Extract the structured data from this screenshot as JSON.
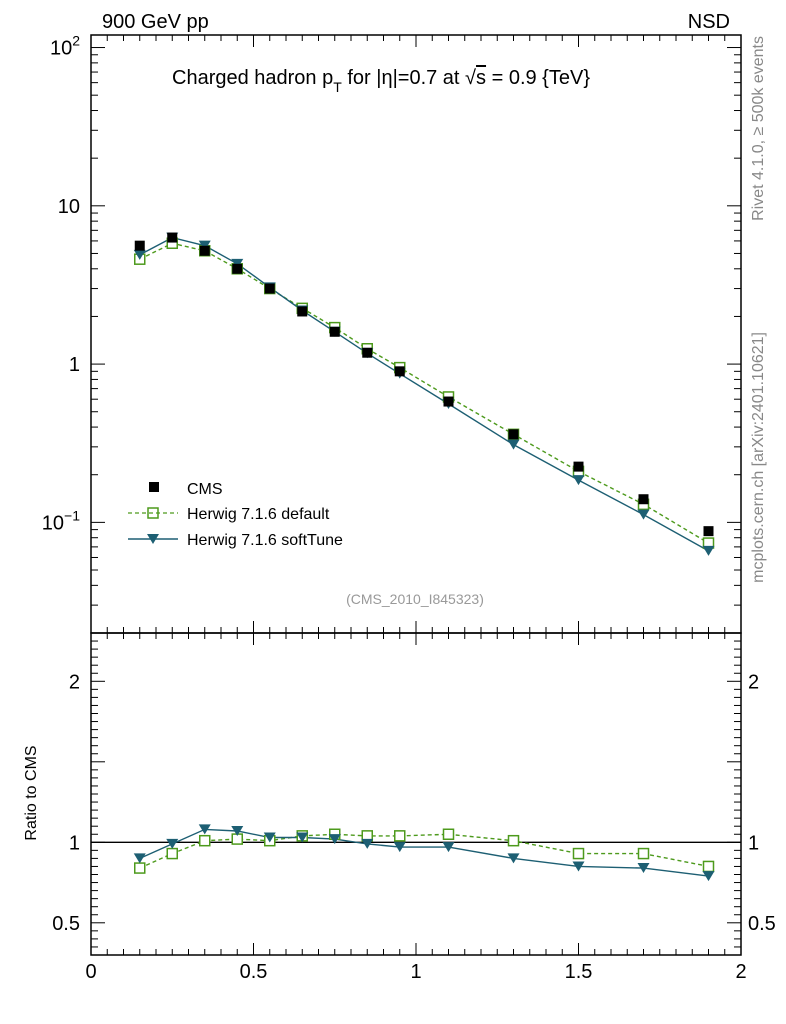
{
  "header": {
    "left_label": "900 GeV pp",
    "right_label": "NSD"
  },
  "side_text": {
    "rivet": "Rivet 4.1.0, ≥ 500k events",
    "mcplots": "mcplots.cern.ch [arXiv:2401.10621]"
  },
  "colors": {
    "data": "#000000",
    "default": "#4d9a1c",
    "softtune": "#1d5f73",
    "watermark": "#999999"
  },
  "chart_data": [
    {
      "type": "scatter",
      "title": "Charged hadron p_T for |η|=0.7 at √s = 0.9 {TeV}",
      "title_parts": {
        "pre": "Charged hadron p",
        "sub": "T",
        "mid": " for |η|=0.7 at ",
        "root": "√",
        "s": "s",
        "post": " = 0.9 {TeV}"
      },
      "watermark": "(CMS_2010_I845323)",
      "yscale": "log",
      "ylim": [
        0.02,
        120
      ],
      "xlim": [
        0,
        2
      ],
      "yticks": [
        {
          "v": 0.1,
          "base": "10",
          "exp": "−1"
        },
        {
          "v": 1,
          "base": "1",
          "exp": ""
        },
        {
          "v": 10,
          "base": "10",
          "exp": ""
        },
        {
          "v": 100,
          "base": "10",
          "exp": "2"
        }
      ],
      "legend_position": "lower-left",
      "x": [
        0.15,
        0.25,
        0.35,
        0.45,
        0.55,
        0.65,
        0.75,
        0.85,
        0.95,
        1.1,
        1.3,
        1.5,
        1.7,
        1.9
      ],
      "series": [
        {
          "name": "CMS",
          "style": "data",
          "values": [
            5.6,
            6.3,
            5.2,
            4.0,
            3.0,
            2.15,
            1.6,
            1.18,
            0.9,
            0.58,
            0.36,
            0.225,
            0.14,
            0.088
          ]
        },
        {
          "name": "Herwig 7.1.6 default",
          "style": "default",
          "values": [
            4.6,
            5.8,
            5.2,
            4.0,
            3.0,
            2.25,
            1.7,
            1.25,
            0.95,
            0.62,
            0.36,
            0.21,
            0.13,
            0.074
          ]
        },
        {
          "name": "Herwig 7.1.6 softTune",
          "style": "softtune",
          "values": [
            4.9,
            6.3,
            5.6,
            4.3,
            3.05,
            2.18,
            1.6,
            1.17,
            0.87,
            0.56,
            0.31,
            0.185,
            0.112,
            0.066
          ]
        }
      ]
    },
    {
      "type": "line",
      "ylabel": "Ratio to CMS",
      "ylim": [
        0.3,
        2.3
      ],
      "xlim": [
        0,
        2
      ],
      "yticks": [
        {
          "v": 0.5,
          "label": "0.5"
        },
        {
          "v": 1,
          "label": "1"
        },
        {
          "v": 2,
          "label": "2"
        }
      ],
      "xticks": [
        {
          "v": 0,
          "label": "0"
        },
        {
          "v": 0.5,
          "label": "0.5"
        },
        {
          "v": 1,
          "label": "1"
        },
        {
          "v": 1.5,
          "label": "1.5"
        },
        {
          "v": 2,
          "label": "2"
        }
      ],
      "reference": 1,
      "x": [
        0.15,
        0.25,
        0.35,
        0.45,
        0.55,
        0.65,
        0.75,
        0.85,
        0.95,
        1.1,
        1.3,
        1.5,
        1.7,
        1.9
      ],
      "series": [
        {
          "name": "Herwig 7.1.6 default",
          "style": "default",
          "values": [
            0.84,
            0.93,
            1.01,
            1.02,
            1.01,
            1.04,
            1.05,
            1.04,
            1.04,
            1.05,
            1.01,
            0.93,
            0.93,
            0.85
          ]
        },
        {
          "name": "Herwig 7.1.6 softTune",
          "style": "softtune",
          "values": [
            0.9,
            0.99,
            1.08,
            1.07,
            1.03,
            1.03,
            1.02,
            0.99,
            0.97,
            0.97,
            0.9,
            0.85,
            0.84,
            0.79
          ]
        }
      ]
    }
  ]
}
